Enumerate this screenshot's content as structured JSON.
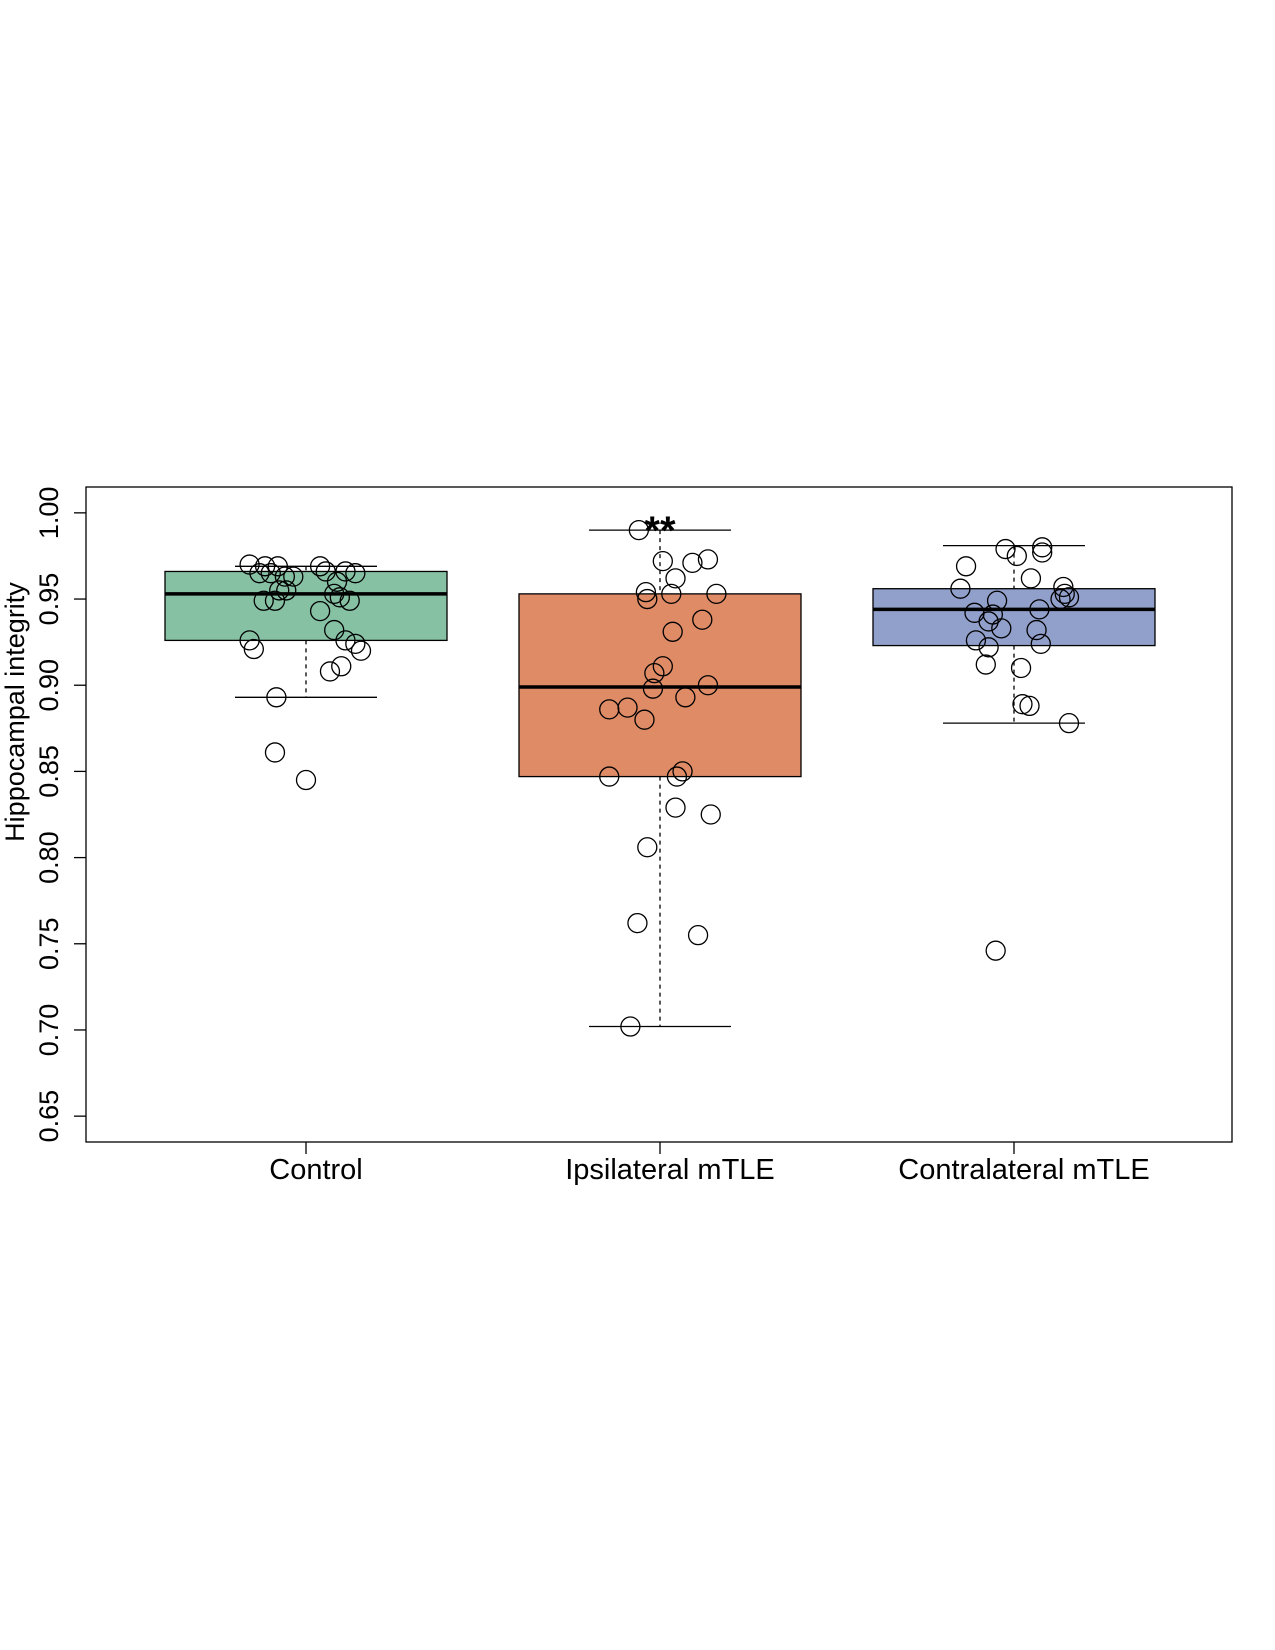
{
  "chart_data": {
    "type": "boxplot",
    "title": "",
    "xlabel": "",
    "ylabel": "Hippocampal integrity",
    "ylim": [
      0.635,
      1.015
    ],
    "yticks": [
      0.65,
      0.7,
      0.75,
      0.8,
      0.85,
      0.9,
      0.95,
      1.0
    ],
    "ytick_labels": [
      "0.65",
      "0.70",
      "0.75",
      "0.80",
      "0.85",
      "0.90",
      "0.95",
      "1.00"
    ],
    "grid": false,
    "groups": [
      {
        "name": "Control",
        "color": "#86C1A4",
        "whisker_low": 0.893,
        "q1": 0.926,
        "median": 0.953,
        "q3": 0.966,
        "whisker_high": 0.969,
        "points": [
          [
            -0.4,
            0.97
          ],
          [
            -0.33,
            0.965
          ],
          [
            -0.29,
            0.969
          ],
          [
            -0.25,
            0.965
          ],
          [
            -0.2,
            0.969
          ],
          [
            -0.15,
            0.963
          ],
          [
            -0.09,
            0.963
          ],
          [
            -0.3,
            0.949
          ],
          [
            -0.22,
            0.949
          ],
          [
            -0.19,
            0.955
          ],
          [
            -0.14,
            0.955
          ],
          [
            0.1,
            0.969
          ],
          [
            0.14,
            0.966
          ],
          [
            0.28,
            0.966
          ],
          [
            0.35,
            0.965
          ],
          [
            0.22,
            0.96
          ],
          [
            0.2,
            0.953
          ],
          [
            0.24,
            0.951
          ],
          [
            0.31,
            0.949
          ],
          [
            0.1,
            0.943
          ],
          [
            0.2,
            0.932
          ],
          [
            0.28,
            0.926
          ],
          [
            0.35,
            0.924
          ],
          [
            0.39,
            0.92
          ],
          [
            -0.4,
            0.926
          ],
          [
            -0.37,
            0.921
          ],
          [
            0.25,
            0.911
          ],
          [
            0.17,
            0.908
          ],
          [
            -0.21,
            0.893
          ],
          [
            -0.22,
            0.861
          ],
          [
            0.0,
            0.845
          ]
        ]
      },
      {
        "name": "Ipsilateral mTLE",
        "color": "#DE8B66",
        "whisker_low": 0.702,
        "q1": 0.847,
        "median": 0.899,
        "q3": 0.953,
        "whisker_high": 0.99,
        "points": [
          [
            -0.15,
            0.99
          ],
          [
            0.02,
            0.972
          ],
          [
            0.23,
            0.971
          ],
          [
            0.34,
            0.973
          ],
          [
            0.11,
            0.962
          ],
          [
            -0.1,
            0.954
          ],
          [
            -0.09,
            0.95
          ],
          [
            0.08,
            0.953
          ],
          [
            0.4,
            0.953
          ],
          [
            0.3,
            0.938
          ],
          [
            0.09,
            0.931
          ],
          [
            0.02,
            0.911
          ],
          [
            -0.04,
            0.907
          ],
          [
            -0.05,
            0.898
          ],
          [
            0.18,
            0.893
          ],
          [
            0.34,
            0.9
          ],
          [
            -0.36,
            0.886
          ],
          [
            -0.23,
            0.887
          ],
          [
            -0.11,
            0.88
          ],
          [
            0.16,
            0.85
          ],
          [
            0.12,
            0.847
          ],
          [
            -0.36,
            0.847
          ],
          [
            0.11,
            0.829
          ],
          [
            0.36,
            0.825
          ],
          [
            -0.09,
            0.806
          ],
          [
            -0.16,
            0.762
          ],
          [
            0.27,
            0.755
          ],
          [
            -0.21,
            0.702
          ]
        ]
      },
      {
        "name": "Contralateral mTLE",
        "color": "#919FCB",
        "whisker_low": 0.878,
        "q1": 0.923,
        "median": 0.944,
        "q3": 0.956,
        "whisker_high": 0.981,
        "points": [
          [
            -0.06,
            0.979
          ],
          [
            0.2,
            0.98
          ],
          [
            0.02,
            0.975
          ],
          [
            0.2,
            0.977
          ],
          [
            -0.34,
            0.969
          ],
          [
            0.12,
            0.962
          ],
          [
            -0.38,
            0.956
          ],
          [
            0.35,
            0.957
          ],
          [
            -0.28,
            0.942
          ],
          [
            -0.15,
            0.941
          ],
          [
            -0.12,
            0.949
          ],
          [
            0.33,
            0.95
          ],
          [
            0.39,
            0.951
          ],
          [
            0.36,
            0.953
          ],
          [
            0.18,
            0.944
          ],
          [
            -0.18,
            0.937
          ],
          [
            -0.09,
            0.933
          ],
          [
            0.16,
            0.932
          ],
          [
            0.19,
            0.924
          ],
          [
            -0.18,
            0.922
          ],
          [
            -0.27,
            0.926
          ],
          [
            -0.2,
            0.912
          ],
          [
            0.05,
            0.91
          ],
          [
            0.11,
            0.888
          ],
          [
            0.06,
            0.889
          ],
          [
            0.39,
            0.878
          ],
          [
            -0.13,
            0.746
          ]
        ]
      }
    ],
    "annotations": [
      {
        "text": "**",
        "group": "Ipsilateral mTLE",
        "y": 0.996
      }
    ]
  }
}
